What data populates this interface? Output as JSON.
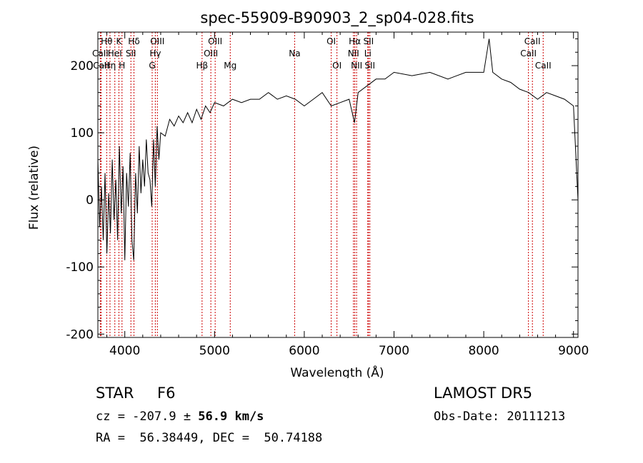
{
  "chart_data": {
    "type": "line",
    "title": "spec-55909-B90903_2_sp04-028.fits",
    "xlabel": "Wavelength (Å)",
    "ylabel": "Flux (relative)",
    "xlim": [
      3700,
      9050
    ],
    "ylim": [
      -205,
      250
    ],
    "x_ticks": [
      4000,
      5000,
      6000,
      7000,
      8000,
      9000
    ],
    "y_ticks": [
      -200,
      -100,
      0,
      100,
      200
    ],
    "line_color": "#000000",
    "marker_color": "#cc0000",
    "series": [
      {
        "x": [
          3700,
          3720,
          3740,
          3760,
          3780,
          3800,
          3820,
          3840,
          3860,
          3880,
          3900,
          3920,
          3940,
          3960,
          3980,
          4000,
          4020,
          4040,
          4060,
          4080,
          4100,
          4120,
          4140,
          4160,
          4180,
          4200,
          4220,
          4240,
          4260,
          4280,
          4300,
          4320,
          4340,
          4360,
          4380,
          4400,
          4450,
          4500,
          4550,
          4600,
          4650,
          4700,
          4750,
          4800,
          4850,
          4900,
          4950,
          5000,
          5100,
          5200,
          5300,
          5400,
          5500,
          5600,
          5700,
          5800,
          5900,
          6000,
          6100,
          6200,
          6300,
          6400,
          6500,
          6560,
          6600,
          6700,
          6800,
          6900,
          7000,
          7200,
          7400,
          7600,
          7800,
          8000,
          8060,
          8100,
          8200,
          8300,
          8400,
          8500,
          8600,
          8700,
          8800,
          8900,
          9000,
          9050
        ],
        "y": [
          60,
          -40,
          20,
          -60,
          40,
          -80,
          10,
          -50,
          60,
          -30,
          30,
          -60,
          80,
          -20,
          50,
          -90,
          40,
          -10,
          70,
          -60,
          -90,
          40,
          -20,
          80,
          10,
          60,
          20,
          90,
          40,
          30,
          -10,
          90,
          20,
          110,
          60,
          100,
          95,
          120,
          110,
          125,
          115,
          130,
          115,
          135,
          120,
          140,
          130,
          145,
          140,
          150,
          145,
          150,
          150,
          160,
          150,
          155,
          150,
          140,
          150,
          160,
          140,
          145,
          150,
          115,
          160,
          170,
          180,
          180,
          190,
          185,
          190,
          180,
          190,
          190,
          240,
          190,
          180,
          175,
          165,
          160,
          150,
          160,
          155,
          150,
          140,
          0
        ]
      }
    ],
    "lines": [
      {
        "label": "Hθ",
        "x": 3798,
        "tier": 1
      },
      {
        "label": "K",
        "x": 3934,
        "tier": 1
      },
      {
        "label": "Hδ",
        "x": 4102,
        "tier": 1
      },
      {
        "label": "OIII",
        "x": 4363,
        "tier": 1
      },
      {
        "label": "OIII",
        "x": 5007,
        "tier": 1
      },
      {
        "label": "OI",
        "x": 6300,
        "tier": 1
      },
      {
        "label": "Hα",
        "x": 6563,
        "tier": 1
      },
      {
        "label": "SII",
        "x": 6716,
        "tier": 1
      },
      {
        "label": "CaII",
        "x": 8542,
        "tier": 1
      },
      {
        "label": "CaII",
        "x": 3727,
        "tier": 2
      },
      {
        "label": "HeI",
        "x": 3889,
        "tier": 2
      },
      {
        "label": "SII",
        "x": 4068,
        "tier": 2
      },
      {
        "label": "Hγ",
        "x": 4340,
        "tier": 2
      },
      {
        "label": "OIII",
        "x": 4959,
        "tier": 2
      },
      {
        "label": "Na",
        "x": 5893,
        "tier": 2
      },
      {
        "label": "NII",
        "x": 6548,
        "tier": 2
      },
      {
        "label": "Li",
        "x": 6708,
        "tier": 2
      },
      {
        "label": "CaII",
        "x": 8498,
        "tier": 2
      },
      {
        "label": "CaII",
        "x": 3737,
        "tier": 3
      },
      {
        "label": "Hη",
        "x": 3835,
        "tier": 3
      },
      {
        "label": "H",
        "x": 3969,
        "tier": 3
      },
      {
        "label": "G",
        "x": 4305,
        "tier": 3
      },
      {
        "label": "Hβ",
        "x": 4861,
        "tier": 3
      },
      {
        "label": "Mg",
        "x": 5175,
        "tier": 3
      },
      {
        "label": "OI",
        "x": 6364,
        "tier": 3
      },
      {
        "label": "NII",
        "x": 6583,
        "tier": 3
      },
      {
        "label": "SII",
        "x": 6731,
        "tier": 3
      },
      {
        "label": "CaII",
        "x": 8662,
        "tier": 3
      }
    ]
  },
  "info": {
    "object_class": "STAR",
    "subclass": "F6",
    "survey": "LAMOST DR5",
    "cz_prefix": "cz = -207.9 ± ",
    "cz_err": "56.9 km/s",
    "obs_date": "Obs-Date: 20111213",
    "coords": "RA =  56.38449, DEC =  50.74188"
  }
}
